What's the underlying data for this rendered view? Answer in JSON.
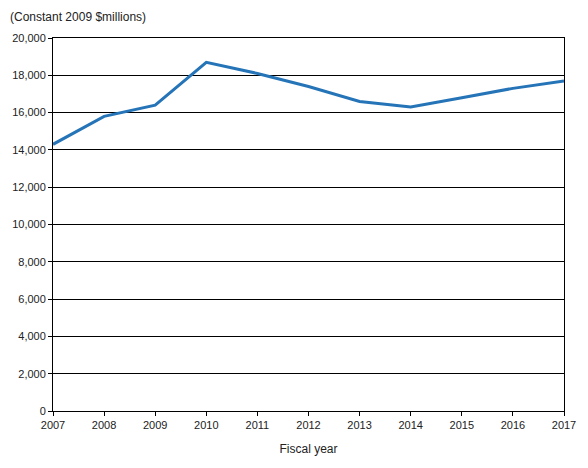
{
  "chart_data": {
    "type": "line",
    "y_label": "(Constant 2009 $millions)",
    "x_label": "Fiscal year",
    "x": [
      2007,
      2008,
      2009,
      2010,
      2011,
      2012,
      2013,
      2014,
      2015,
      2016,
      2017
    ],
    "values": [
      14300,
      15800,
      16400,
      18700,
      18100,
      17400,
      16600,
      16300,
      16800,
      17300,
      17700
    ],
    "color": "#2574b8",
    "xlim": [
      2007,
      2017
    ],
    "xticks": [
      2007,
      2008,
      2009,
      2010,
      2011,
      2012,
      2013,
      2014,
      2015,
      2016,
      2017
    ],
    "ylim": [
      0,
      20000
    ],
    "yticks": [
      0,
      {
        "value": 2000,
        "label": "2,000"
      },
      {
        "value": 4000,
        "label": "4,000"
      },
      {
        "value": 6000,
        "label": "6,000"
      },
      {
        "value": 8000,
        "label": "8,000"
      },
      {
        "value": 10000,
        "label": "10,000"
      },
      {
        "value": 12000,
        "label": "12,000"
      },
      {
        "value": 14000,
        "label": "14,000"
      },
      {
        "value": 16000,
        "label": "16,000"
      },
      {
        "value": 18000,
        "label": "18,000"
      },
      {
        "value": 20000,
        "label": "20,000"
      }
    ],
    "grid": true
  }
}
